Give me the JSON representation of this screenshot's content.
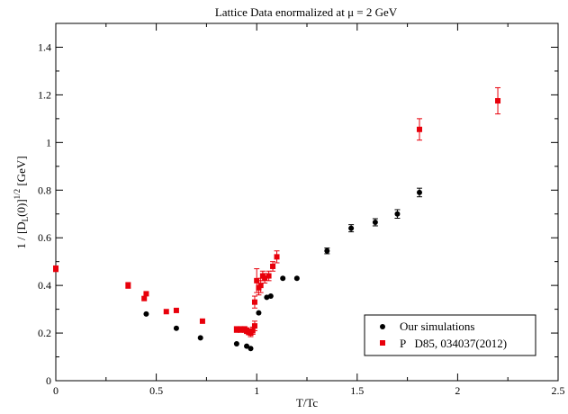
{
  "chart_data": {
    "type": "scatter",
    "title": "Lattice Data    enormalized at μ = 2 GeV",
    "xlabel": "T/Tc",
    "ylabel": "1 / [D_L(0)]^{1/2}  [GeV]",
    "ylabel_parts": {
      "pre": "1 / [D",
      "sub": "L",
      "mid": "(0)]",
      "sup": "1/2",
      "post": "  [GeV]"
    },
    "xlim": [
      0,
      2.5
    ],
    "ylim": [
      0,
      1.5
    ],
    "xticks": [
      {
        "value": 0,
        "label": "0"
      },
      {
        "value": 0.5,
        "label": "0.5"
      },
      {
        "value": 1,
        "label": "1"
      },
      {
        "value": 1.5,
        "label": "1.5"
      },
      {
        "value": 2,
        "label": "2"
      },
      {
        "value": 2.5,
        "label": "2.5"
      }
    ],
    "yticks": [
      {
        "value": 0,
        "label": "0"
      },
      {
        "value": 0.2,
        "label": "0.2"
      },
      {
        "value": 0.4,
        "label": "0.4"
      },
      {
        "value": 0.6,
        "label": "0.6"
      },
      {
        "value": 0.8,
        "label": "0.8"
      },
      {
        "value": 1.0,
        "label": "1"
      },
      {
        "value": 1.2,
        "label": "1.2"
      },
      {
        "value": 1.4,
        "label": "1.4"
      }
    ],
    "grid": false,
    "legend_position": "bottom-right",
    "series": [
      {
        "name": "Our simulations",
        "color": "#000000",
        "marker": "circle",
        "points": [
          {
            "x": 0.45,
            "y": 0.28,
            "err": 0.006
          },
          {
            "x": 0.6,
            "y": 0.22,
            "err": 0.006
          },
          {
            "x": 0.72,
            "y": 0.18,
            "err": 0.006
          },
          {
            "x": 0.9,
            "y": 0.155,
            "err": 0.006
          },
          {
            "x": 0.95,
            "y": 0.145,
            "err": 0.006
          },
          {
            "x": 0.97,
            "y": 0.135,
            "err": 0.006
          },
          {
            "x": 1.01,
            "y": 0.285,
            "err": 0.006
          },
          {
            "x": 1.05,
            "y": 0.35,
            "err": 0.008
          },
          {
            "x": 1.07,
            "y": 0.355,
            "err": 0.008
          },
          {
            "x": 1.13,
            "y": 0.43,
            "err": 0.008
          },
          {
            "x": 1.2,
            "y": 0.43,
            "err": 0.01
          },
          {
            "x": 1.35,
            "y": 0.545,
            "err": 0.012
          },
          {
            "x": 1.47,
            "y": 0.64,
            "err": 0.015
          },
          {
            "x": 1.59,
            "y": 0.665,
            "err": 0.015
          },
          {
            "x": 1.7,
            "y": 0.7,
            "err": 0.018
          },
          {
            "x": 1.81,
            "y": 0.79,
            "err": 0.018
          }
        ]
      },
      {
        "name": "P   D85, 034037(2012)",
        "color": "#e8000b",
        "marker": "square",
        "points": [
          {
            "x": 0.0,
            "y": 0.47,
            "err": 0.012
          },
          {
            "x": 0.36,
            "y": 0.4,
            "err": 0.012
          },
          {
            "x": 0.44,
            "y": 0.345,
            "err": 0.01
          },
          {
            "x": 0.45,
            "y": 0.365,
            "err": 0.01
          },
          {
            "x": 0.55,
            "y": 0.29,
            "err": 0.01
          },
          {
            "x": 0.6,
            "y": 0.295,
            "err": 0.01
          },
          {
            "x": 0.73,
            "y": 0.25,
            "err": 0.01
          },
          {
            "x": 0.9,
            "y": 0.215,
            "err": 0.012
          },
          {
            "x": 0.92,
            "y": 0.215,
            "err": 0.012
          },
          {
            "x": 0.94,
            "y": 0.215,
            "err": 0.012
          },
          {
            "x": 0.95,
            "y": 0.21,
            "err": 0.012
          },
          {
            "x": 0.96,
            "y": 0.205,
            "err": 0.012
          },
          {
            "x": 0.97,
            "y": 0.2,
            "err": 0.015
          },
          {
            "x": 0.98,
            "y": 0.21,
            "err": 0.015
          },
          {
            "x": 0.99,
            "y": 0.23,
            "err": 0.02
          },
          {
            "x": 0.99,
            "y": 0.33,
            "err": 0.025
          },
          {
            "x": 1.0,
            "y": 0.42,
            "err": 0.05
          },
          {
            "x": 1.01,
            "y": 0.39,
            "err": 0.03
          },
          {
            "x": 1.02,
            "y": 0.4,
            "err": 0.03
          },
          {
            "x": 1.03,
            "y": 0.44,
            "err": 0.02
          },
          {
            "x": 1.04,
            "y": 0.43,
            "err": 0.02
          },
          {
            "x": 1.06,
            "y": 0.44,
            "err": 0.02
          },
          {
            "x": 1.08,
            "y": 0.48,
            "err": 0.02
          },
          {
            "x": 1.1,
            "y": 0.52,
            "err": 0.025
          },
          {
            "x": 1.81,
            "y": 1.055,
            "err": 0.045
          },
          {
            "x": 2.2,
            "y": 1.175,
            "err": 0.055
          }
        ]
      }
    ]
  }
}
